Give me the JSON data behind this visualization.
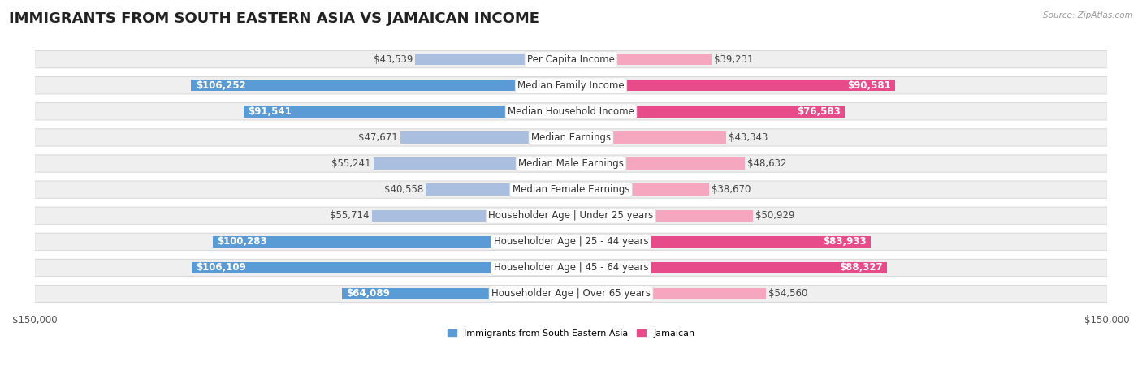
{
  "title": "IMMIGRANTS FROM SOUTH EASTERN ASIA VS JAMAICAN INCOME",
  "source": "Source: ZipAtlas.com",
  "categories": [
    "Per Capita Income",
    "Median Family Income",
    "Median Household Income",
    "Median Earnings",
    "Median Male Earnings",
    "Median Female Earnings",
    "Householder Age | Under 25 years",
    "Householder Age | 25 - 44 years",
    "Householder Age | 45 - 64 years",
    "Householder Age | Over 65 years"
  ],
  "sea_values": [
    43539,
    106252,
    91541,
    47671,
    55241,
    40558,
    55714,
    100283,
    106109,
    64089
  ],
  "jam_values": [
    39231,
    90581,
    76583,
    43343,
    48632,
    38670,
    50929,
    83933,
    88327,
    54560
  ],
  "sea_color_light": "#AABFE0",
  "sea_color_dark": "#5B9BD5",
  "jam_color_light": "#F4A7BE",
  "jam_color_dark": "#E84B8A",
  "max_val": 150000,
  "sea_label": "Immigrants from South Eastern Asia",
  "jam_label": "Jamaican",
  "dark_threshold": 60000,
  "title_fontsize": 13,
  "label_fontsize": 8.5,
  "value_fontsize": 8.5,
  "axis_label_fontsize": 8.5
}
